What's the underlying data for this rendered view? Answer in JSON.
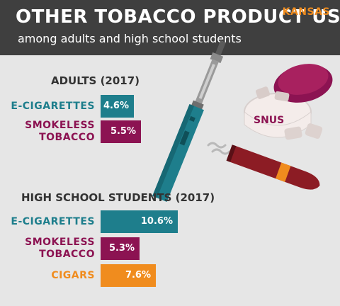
{
  "header": {
    "title": "OTHER TOBACCO PRODUCT USE",
    "subtitle": "among adults and high school students",
    "state": "KANSAS"
  },
  "colors": {
    "header_bg": "#3f3f3f",
    "background": "#e6e6e6",
    "e_cigarettes": "#1e7e8c",
    "smokeless_tobacco": "#8c1352",
    "cigars": "#f08c1e",
    "state_label": "#f08c1e"
  },
  "illustration": {
    "snus_label": "SNUS",
    "icons": [
      "e-cigarette-icon",
      "snus-tin-icon",
      "cigar-icon"
    ]
  },
  "chart_data": [
    {
      "type": "bar",
      "title": "ADULTS (2017)",
      "categories": [
        "E-CIGARETTES",
        "SMOKELESS TOBACCO"
      ],
      "values": [
        4.6,
        5.5
      ],
      "value_labels": [
        "4.6%",
        "5.5%"
      ],
      "xlim": [
        0,
        13
      ],
      "grid": false,
      "legend": "none"
    },
    {
      "type": "bar",
      "title": "HIGH SCHOOL STUDENTS (2017)",
      "categories": [
        "E-CIGARETTES",
        "SMOKELESS TOBACCO",
        "CIGARS"
      ],
      "values": [
        10.6,
        5.3,
        7.6
      ],
      "value_labels": [
        "10.6%",
        "5.3%",
        "7.6%"
      ],
      "xlim": [
        0,
        13
      ],
      "grid": false,
      "legend": "none"
    }
  ]
}
